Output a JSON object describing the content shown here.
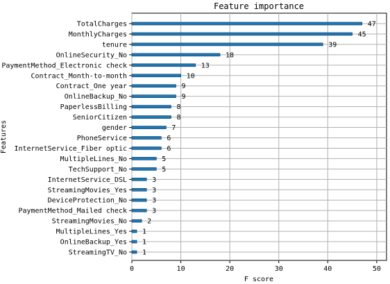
{
  "chart_data": {
    "type": "bar",
    "orientation": "horizontal",
    "title": "Feature importance",
    "xlabel": "F score",
    "ylabel": "Features",
    "xlim": [
      0,
      52
    ],
    "xticks": [
      0,
      10,
      20,
      30,
      40,
      50
    ],
    "grid": true,
    "bar_color": "#1f77b4",
    "categories": [
      "TotalCharges",
      "MonthlyCharges",
      "tenure",
      "OnlineSecurity_No",
      "PaymentMethod_Electronic check",
      "Contract_Month-to-month",
      "Contract_One year",
      "OnlineBackup_No",
      "PaperlessBilling",
      "SeniorCitizen",
      "gender",
      "PhoneService",
      "InternetService_Fiber optic",
      "MultipleLines_No",
      "TechSupport_No",
      "InternetService_DSL",
      "StreamingMovies_Yes",
      "DeviceProtection_No",
      "PaymentMethod_Mailed check",
      "StreamingMovies_No",
      "MultipleLines_Yes",
      "OnlineBackup_Yes",
      "StreamingTV_No"
    ],
    "values": [
      47,
      45,
      39,
      18,
      13,
      10,
      9,
      9,
      8,
      8,
      7,
      6,
      6,
      5,
      5,
      3,
      3,
      3,
      3,
      2,
      1,
      1,
      1
    ]
  }
}
